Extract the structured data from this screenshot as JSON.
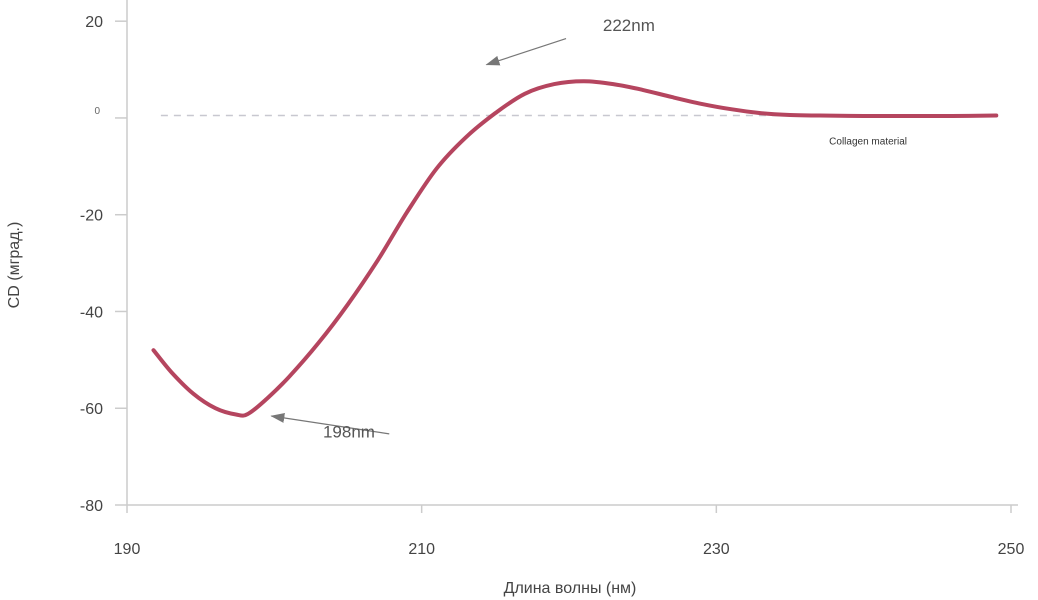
{
  "colors": {
    "series": "#b5455f",
    "axis": "#cccccc",
    "reference": "#c8c8d0",
    "arrow": "#777777"
  },
  "chart_data": {
    "type": "line",
    "title": "",
    "xlabel": "Длина волны (нм)",
    "ylabel": "CD (мград.)",
    "xlim": [
      190,
      250
    ],
    "ylim": [
      -80,
      25
    ],
    "x_ticks": [
      {
        "value": 190,
        "label": "190"
      },
      {
        "value": 210,
        "label": "210"
      },
      {
        "value": 230,
        "label": "230"
      },
      {
        "value": 250,
        "label": "250"
      }
    ],
    "y_ticks": [
      {
        "value": 20,
        "label": "20",
        "style": "normal"
      },
      {
        "value": 0,
        "label": "0",
        "style": "small"
      },
      {
        "value": -20,
        "label": "-20",
        "style": "normal"
      },
      {
        "value": -40,
        "label": "-40",
        "style": "normal"
      },
      {
        "value": -60,
        "label": "-60",
        "style": "normal"
      },
      {
        "value": -80,
        "label": "-80",
        "style": "normal"
      }
    ],
    "grid": false,
    "reference_line": {
      "y": 0.5,
      "x_start": 192.3,
      "x_end": 249,
      "style": "dashed"
    },
    "series": [
      {
        "label": "Collagen material",
        "label_position": {
          "x": 240.3,
          "y": -5.5
        },
        "x": [
          191.8,
          193,
          194.5,
          196,
          197.4,
          198.2,
          199.5,
          201,
          203,
          205,
          207,
          209,
          211,
          213,
          215,
          217,
          219,
          221,
          223,
          225,
          227,
          229,
          231,
          233,
          235,
          237,
          240,
          243,
          246,
          249
        ],
        "y": [
          -48,
          -52.5,
          -57,
          -60,
          -61.3,
          -61.2,
          -58,
          -53.5,
          -46.5,
          -38.5,
          -29.5,
          -19.5,
          -10.5,
          -4,
          1,
          5,
          7,
          7.6,
          7,
          5.8,
          4.3,
          2.9,
          1.8,
          1,
          0.6,
          0.5,
          0.4,
          0.4,
          0.4,
          0.5
        ]
      }
    ],
    "annotations": [
      {
        "text": "222nm",
        "label_x": 222.3,
        "label_y": 18,
        "arrow_from": [
          219.8,
          16.4
        ],
        "arrow_to": [
          214.4,
          11
        ]
      },
      {
        "text": "198nm",
        "label_x": 203.3,
        "label_y": -66,
        "arrow_from": [
          207.8,
          -65.3
        ],
        "arrow_to": [
          199.8,
          -61.6
        ]
      }
    ]
  }
}
